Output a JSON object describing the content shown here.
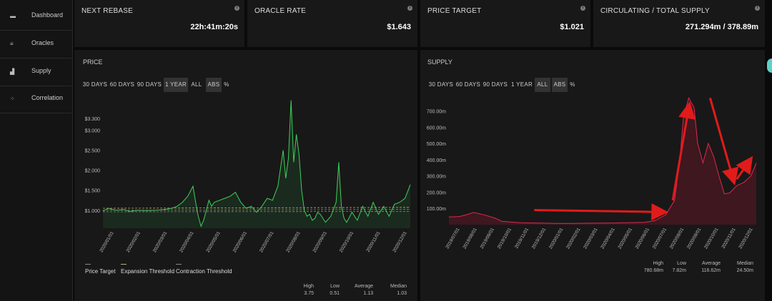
{
  "sidebar": {
    "items": [
      {
        "label": "Dashboard",
        "icon": "dashboard-icon"
      },
      {
        "label": "Oracles",
        "icon": "list-icon"
      },
      {
        "label": "Supply",
        "icon": "bar-chart-icon"
      },
      {
        "label": "Correlation",
        "icon": "scatter-icon"
      }
    ]
  },
  "cards": [
    {
      "title": "NEXT REBASE",
      "value": "22h:41m:20s"
    },
    {
      "title": "ORACLE RATE",
      "value": "$1.643"
    },
    {
      "title": "PRICE TARGET",
      "value": "$1.021"
    },
    {
      "title": "CIRCULATING / TOTAL SUPPLY",
      "value": "271.294m / 378.89m"
    }
  ],
  "price": {
    "title": "PRICE",
    "ranges": [
      "30 DAYS",
      "60 DAYS",
      "90 DAYS",
      "1 YEAR",
      "ALL"
    ],
    "active_range": "1 YEAR",
    "modes": [
      "ABS",
      "%"
    ],
    "active_mode": "ABS",
    "legend": [
      {
        "name": "Price Target",
        "color": "#888888"
      },
      {
        "name": "Expansion Threshold",
        "color": "#b9b26a"
      },
      {
        "name": "Contraction Threshold",
        "color": "#8a8a8a"
      }
    ],
    "stats": [
      {
        "label": "High",
        "value": "3.75"
      },
      {
        "label": "Low",
        "value": "0.51"
      },
      {
        "label": "Average",
        "value": "1.13"
      },
      {
        "label": "Median",
        "value": "1.03"
      }
    ]
  },
  "supply": {
    "title": "SUPPLY",
    "ranges": [
      "30 DAYS",
      "60 DAYS",
      "90 DAYS",
      "1 YEAR",
      "ALL"
    ],
    "active_range": "ALL",
    "modes": [
      "ABS",
      "%"
    ],
    "active_mode": "ABS",
    "stats": [
      {
        "label": "High",
        "value": "780.68m"
      },
      {
        "label": "Low",
        "value": "7.82m"
      },
      {
        "label": "Average",
        "value": "116.62m"
      },
      {
        "label": "Median",
        "value": "24.50m"
      }
    ]
  },
  "colors": {
    "price_line": "#3ecf5a",
    "supply_line": "#e0284e",
    "arrow": "#e11b1b",
    "accent_handle": "#5fd2c8"
  },
  "chart_data": [
    {
      "type": "line",
      "title": "PRICE",
      "ytick_labels": [
        "$1.000",
        "$1.500",
        "$2.000",
        "$2.500",
        "$3.000",
        "$3.300"
      ],
      "yticks": [
        1.0,
        1.5,
        2.0,
        2.5,
        3.0,
        3.3
      ],
      "ylim": [
        0.55,
        3.85
      ],
      "xtick_labels": [
        "2020/01/01",
        "2020/02/01",
        "2020/03/01",
        "2020/04/01",
        "2020/05/01",
        "2020/06/01",
        "2020/07/01",
        "2020/08/01",
        "2020/09/01",
        "2020/10/01",
        "2020/11/01",
        "2020/12/01"
      ],
      "grid": false,
      "series": [
        {
          "name": "Price",
          "x": [
            0,
            0.2,
            0.5,
            0.8,
            1.0,
            1.3,
            1.6,
            2.0,
            2.3,
            2.6,
            2.8,
            3.0,
            3.2,
            3.4,
            3.5,
            3.6,
            3.7,
            3.8,
            3.9,
            4.0,
            4.1,
            4.2,
            4.4,
            4.6,
            4.8,
            5.0,
            5.2,
            5.4,
            5.6,
            5.8,
            6.0,
            6.2,
            6.4,
            6.6,
            6.8,
            6.9,
            7.0,
            7.1,
            7.2,
            7.3,
            7.4,
            7.5,
            7.6,
            7.7,
            7.8,
            7.9,
            8.0,
            8.1,
            8.2,
            8.4,
            8.6,
            8.8,
            8.9,
            9.0,
            9.1,
            9.2,
            9.4,
            9.6,
            9.8,
            10.0,
            10.2,
            10.4,
            10.6,
            10.8,
            11.0,
            11.2,
            11.4,
            11.6
          ],
          "values": [
            0.98,
            1.05,
            1.0,
            1.02,
            0.97,
            1.0,
            0.99,
            1.0,
            1.02,
            1.05,
            1.1,
            1.2,
            1.35,
            1.6,
            1.2,
            0.85,
            0.6,
            0.75,
            1.0,
            1.25,
            1.1,
            1.2,
            1.25,
            1.3,
            1.35,
            1.45,
            1.2,
            1.05,
            1.1,
            0.95,
            1.1,
            1.3,
            1.25,
            1.6,
            2.5,
            1.8,
            2.3,
            3.75,
            2.2,
            2.9,
            2.4,
            1.5,
            1.0,
            0.85,
            0.9,
            0.75,
            0.8,
            0.95,
            0.9,
            0.7,
            0.85,
            1.2,
            2.2,
            1.1,
            0.8,
            0.7,
            0.95,
            0.75,
            1.1,
            0.85,
            1.2,
            0.9,
            1.1,
            0.85,
            1.15,
            1.2,
            1.3,
            1.64
          ]
        },
        {
          "name": "Price Target",
          "x": [
            0,
            11.6
          ],
          "values": [
            1.0,
            1.021
          ]
        },
        {
          "name": "Expansion Threshold",
          "x": [
            0,
            11.6
          ],
          "values": [
            1.05,
            1.07
          ]
        },
        {
          "name": "Contraction Threshold",
          "x": [
            0,
            11.6
          ],
          "values": [
            0.96,
            0.97
          ]
        }
      ]
    },
    {
      "type": "area",
      "title": "SUPPLY",
      "ytick_labels": [
        "100.00m",
        "200.00m",
        "300.00m",
        "400.00m",
        "500.00m",
        "600.00m",
        "700.00m"
      ],
      "yticks": [
        100,
        200,
        300,
        400,
        500,
        600,
        700
      ],
      "ylim": [
        0,
        790
      ],
      "xtick_labels": [
        "2019/07/01",
        "2019/08/01",
        "2019/09/01",
        "2019/10/01",
        "2019/11/01",
        "2019/12/01",
        "2020/01/01",
        "2020/02/01",
        "2020/03/01",
        "2020/04/01",
        "2020/05/01",
        "2020/06/01",
        "2020/07/01",
        "2020/08/01",
        "2020/09/01",
        "2020/10/01",
        "2020/11/01",
        "2020/12/01"
      ],
      "grid": false,
      "series": [
        {
          "name": "Supply",
          "x": [
            0,
            0.6,
            1.0,
            1.4,
            2.0,
            2.6,
            3.0,
            4.0,
            5.0,
            6.0,
            7.0,
            8.0,
            9.0,
            10.0,
            11.0,
            11.6,
            12.2,
            12.7,
            13.0,
            13.2,
            13.5,
            13.8,
            14.0,
            14.3,
            14.6,
            14.9,
            15.2,
            15.5,
            15.8,
            16.2,
            16.6,
            17.0,
            17.3
          ],
          "values": [
            48,
            50,
            62,
            75,
            60,
            40,
            20,
            12,
            10,
            8,
            8,
            9,
            10,
            12,
            14,
            25,
            60,
            150,
            400,
            660,
            780,
            720,
            500,
            380,
            500,
            420,
            300,
            190,
            195,
            240,
            260,
            300,
            380
          ]
        }
      ]
    }
  ]
}
